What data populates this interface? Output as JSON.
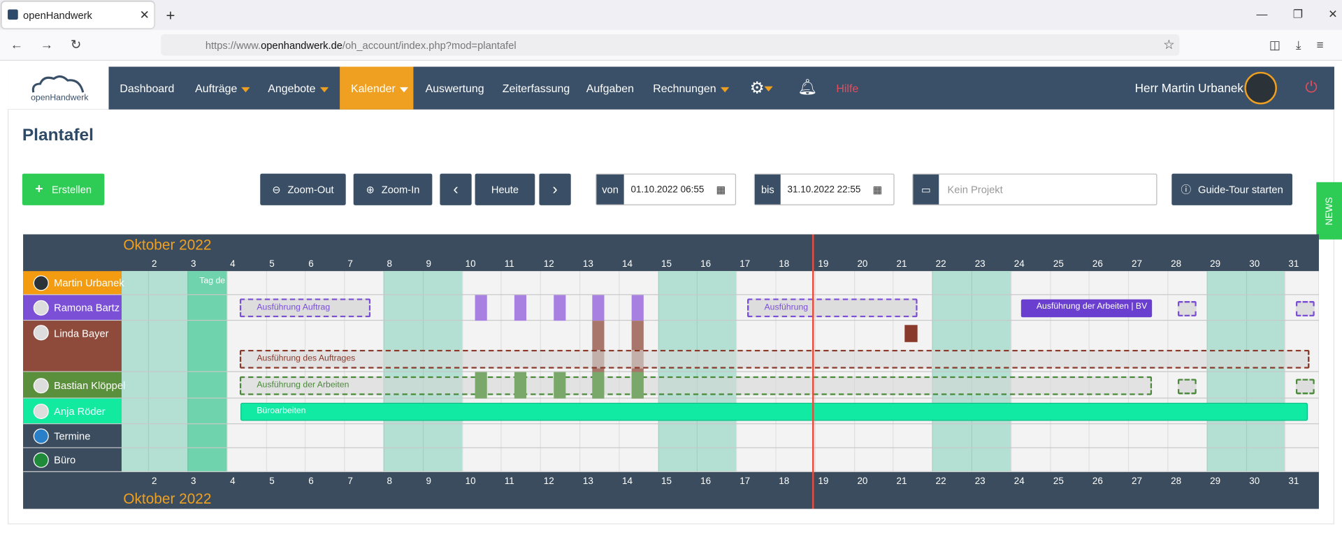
{
  "browser": {
    "tab_title": "openHandwerk",
    "url_prefix": "https://www.",
    "url_domain": "openhandwerk.de",
    "url_path": "/oh_account/index.php?mod=plantafel"
  },
  "nav": {
    "logo": "openHandwerk",
    "items": [
      "Dashboard",
      "Aufträge",
      "Angebote",
      "Kalender",
      "Auswertung",
      "Zeiterfassung",
      "Aufgaben",
      "Rechnungen"
    ],
    "help": "Hilfe",
    "user": "Herr Martin Urbanek"
  },
  "page": {
    "title": "Plantafel",
    "create": "Erstellen",
    "zoom_out": "Zoom-Out",
    "zoom_in": "Zoom-In",
    "today": "Heute",
    "from_label": "von",
    "from_value": "01.10.2022 06:55",
    "to_label": "bis",
    "to_value": "31.10.2022 22:55",
    "project_placeholder": "Kein Projekt",
    "guide": "Guide-Tour starten",
    "news": "NEWS"
  },
  "gantt": {
    "month": "Oktober 2022",
    "days": [
      2,
      3,
      4,
      5,
      6,
      7,
      8,
      9,
      10,
      11,
      12,
      13,
      14,
      15,
      16,
      17,
      18,
      19,
      20,
      21,
      22,
      23,
      24,
      25,
      26,
      27,
      28,
      29,
      30,
      31
    ],
    "rows": [
      "Martin Urbanek",
      "Ramona Bartz",
      "Linda Bayer",
      "Bastian Klöppel",
      "Anja Röder",
      "Termine",
      "Büro"
    ],
    "events": [
      "Tag de",
      "Ausführung Auftrag",
      "Ausführung",
      "Ausführung der Arbeiten | BV",
      "Ausführung des Auftrages",
      "Ausführung der Arbeiten",
      "Büroarbeiten"
    ]
  }
}
